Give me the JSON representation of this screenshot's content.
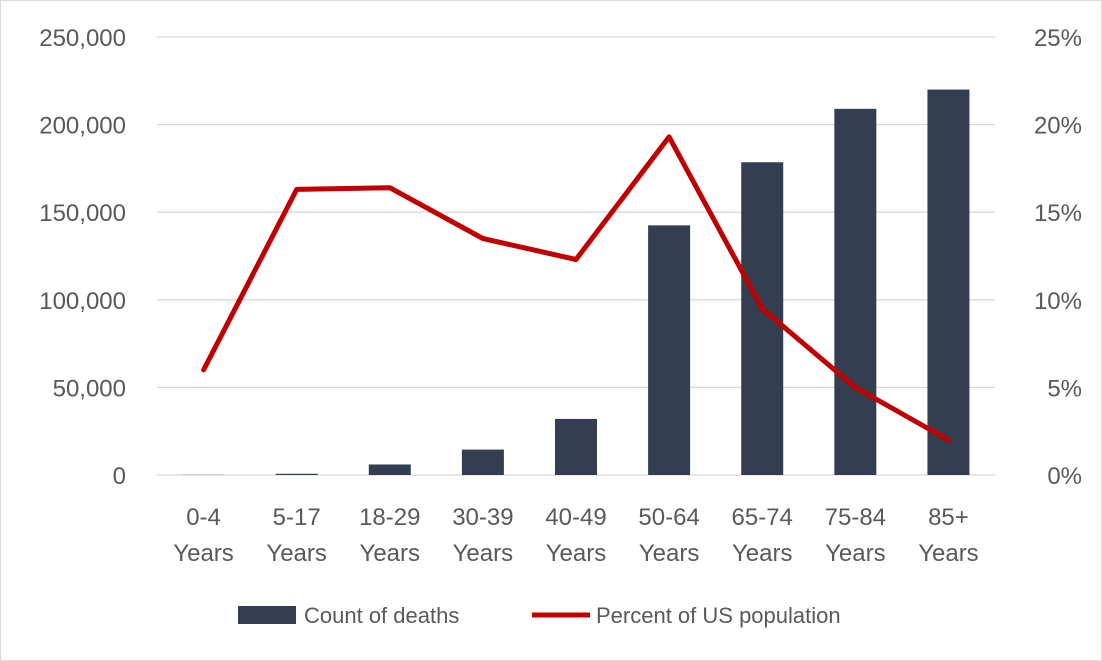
{
  "chart_data": {
    "type": "bar",
    "title": "",
    "xlabel": "",
    "ylabel": "",
    "categories": [
      [
        "0-4",
        "Years"
      ],
      [
        "5-17",
        "Years"
      ],
      [
        "18-29",
        "Years"
      ],
      [
        "30-39",
        "Years"
      ],
      [
        "40-49",
        "Years"
      ],
      [
        "50-64",
        "Years"
      ],
      [
        "65-74",
        "Years"
      ],
      [
        "75-84",
        "Years"
      ],
      [
        "85+",
        "Years"
      ]
    ],
    "series": [
      {
        "name": "Count of deaths",
        "type": "bar",
        "axis": "left",
        "color": "#333f50",
        "values": [
          100,
          700,
          6000,
          14500,
          32000,
          142500,
          178500,
          209000,
          220000
        ]
      },
      {
        "name": "Percent of US population",
        "type": "line",
        "axis": "right",
        "color": "#c00000",
        "values": [
          6.0,
          16.3,
          16.4,
          13.5,
          12.3,
          19.3,
          9.5,
          5.0,
          2.0
        ]
      }
    ],
    "y_left": {
      "min": 0,
      "max": 250000,
      "ticks": [
        "0",
        "50,000",
        "100,000",
        "150,000",
        "200,000",
        "250,000"
      ]
    },
    "y_right": {
      "min": 0,
      "max": 25,
      "ticks": [
        "0%",
        "5%",
        "10%",
        "15%",
        "20%",
        "25%"
      ]
    },
    "grid": true,
    "legend": "bottom"
  }
}
